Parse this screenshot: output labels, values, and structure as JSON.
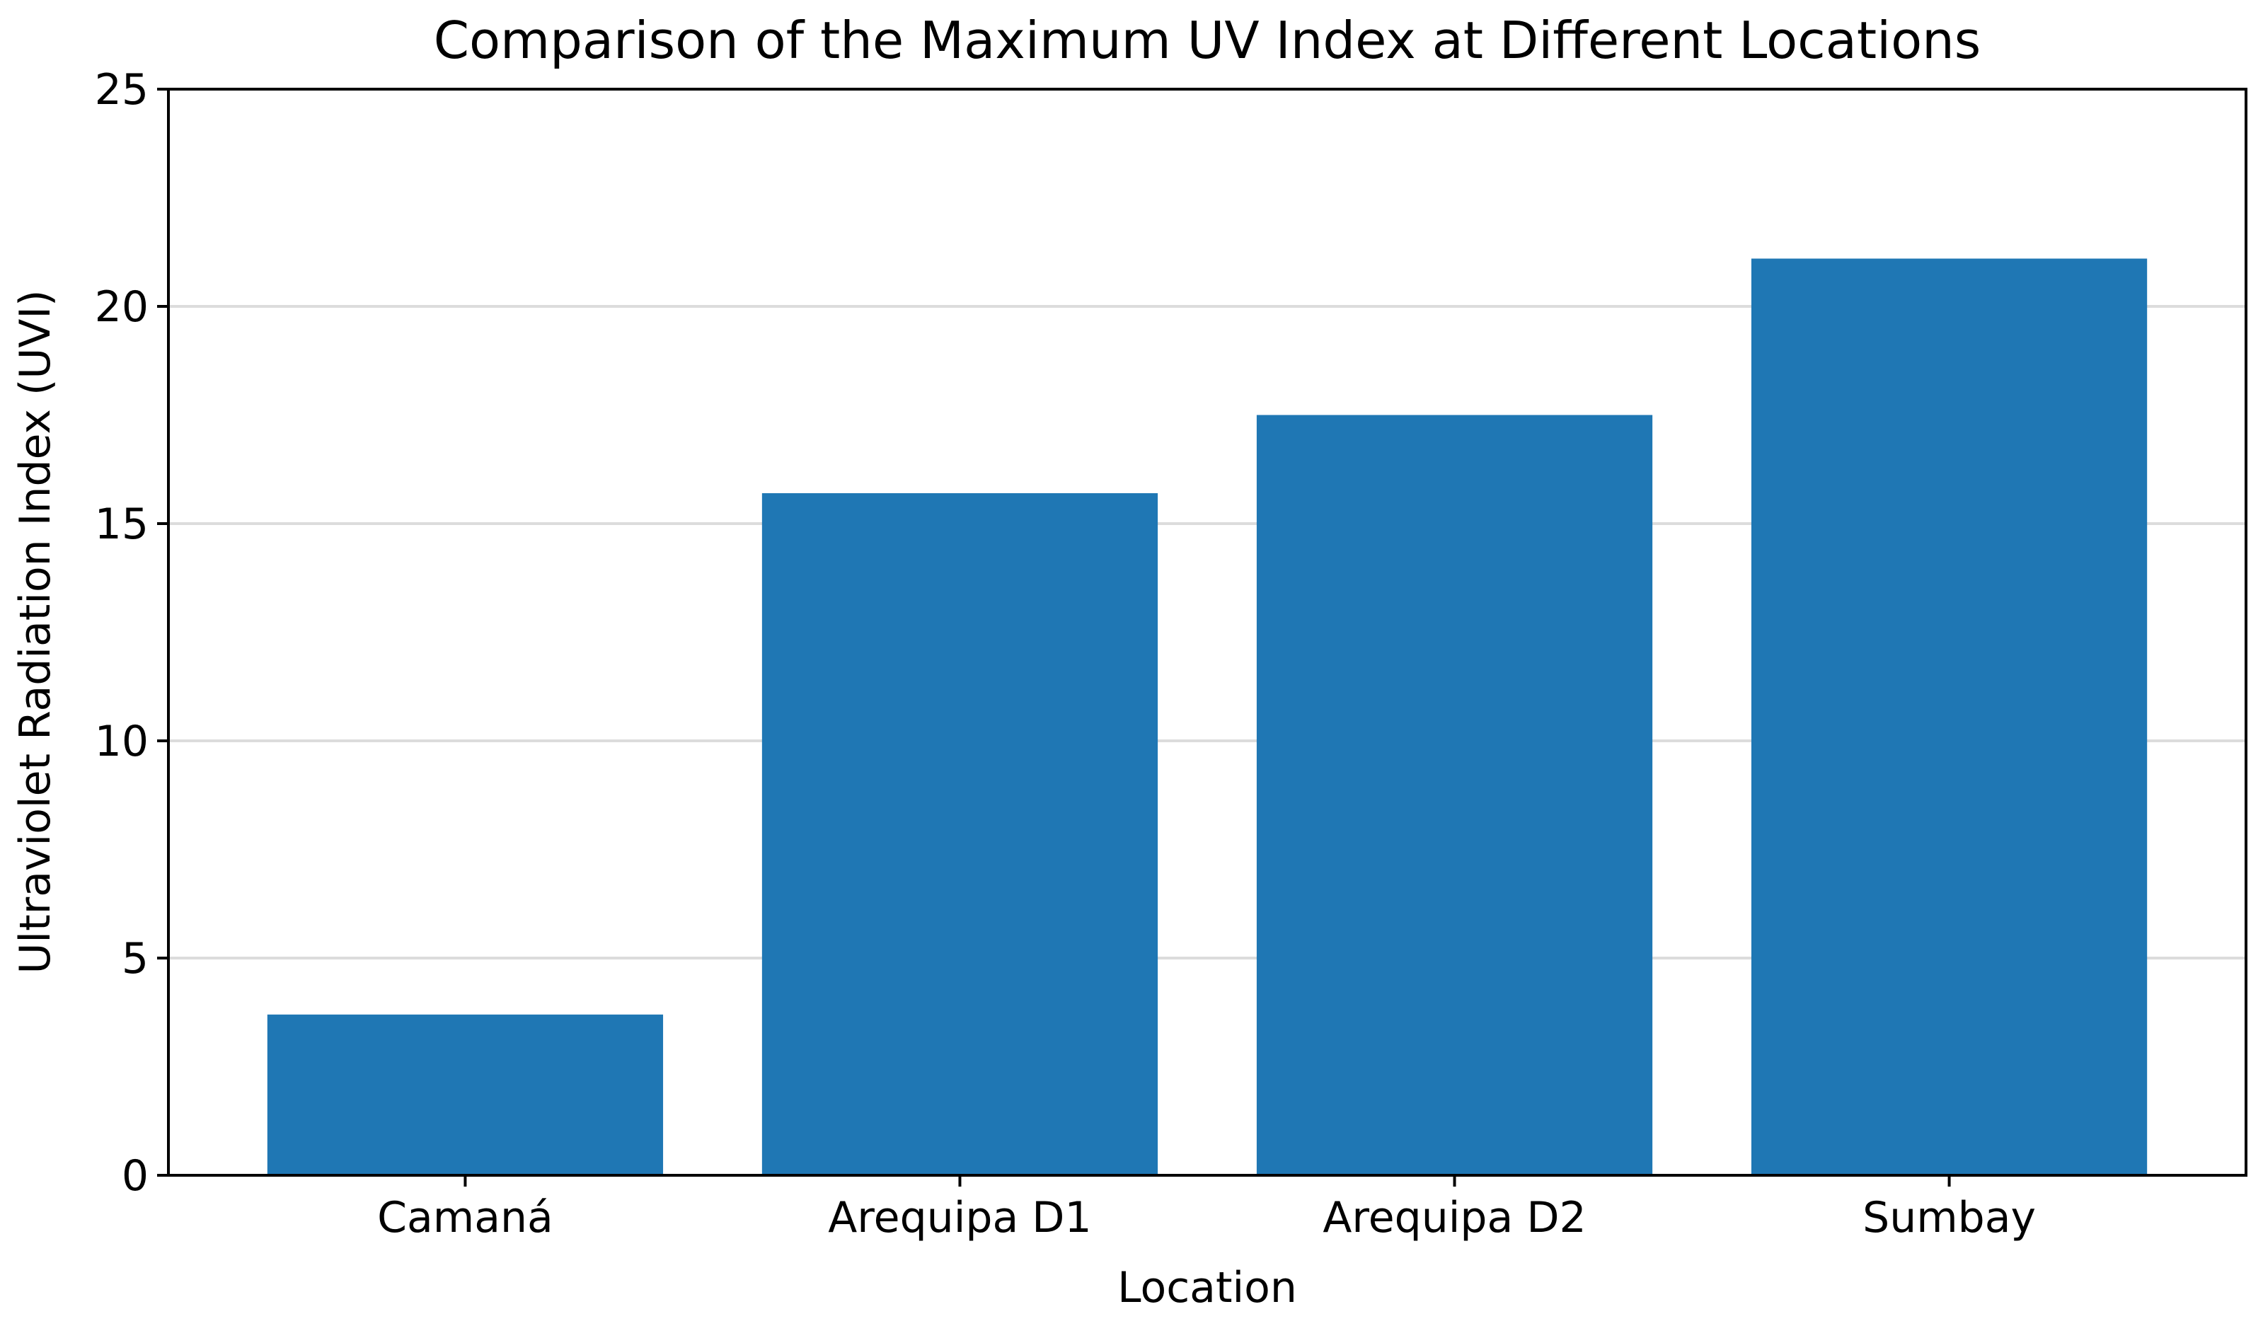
{
  "chart_data": {
    "type": "bar",
    "title": "Comparison of the Maximum UV Index at Different Locations",
    "xlabel": "Location",
    "ylabel": "Ultraviolet Radiation Index (UVI)",
    "categories": [
      "Camaná",
      "Arequipa D1",
      "Arequipa D2",
      "Sumbay"
    ],
    "values": [
      3.7,
      15.7,
      17.5,
      21.1
    ],
    "ylim": [
      0,
      25
    ],
    "yticks": [
      0,
      5,
      10,
      15,
      20,
      25
    ],
    "grid": "horizontal",
    "legend": "none",
    "bar_color": "#1f77b4"
  }
}
